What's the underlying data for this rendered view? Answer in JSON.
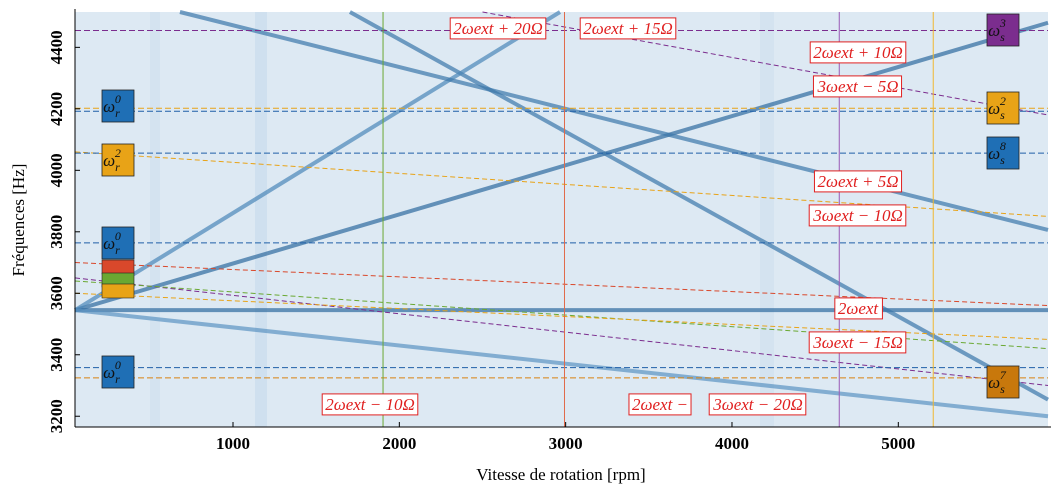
{
  "chart_data": {
    "type": "spectrogram",
    "xlabel": "Vitesse de rotation [rpm]",
    "ylabel": "Fréquences [Hz]",
    "xlim": [
      50,
      5900
    ],
    "ylim": [
      3165,
      4515
    ],
    "xticks": [
      1000,
      2000,
      3000,
      4000,
      5000
    ],
    "yticks": [
      3200,
      3400,
      3600,
      3800,
      4000,
      4200,
      4400
    ],
    "traces": [
      {
        "x": [
          50,
          5900
        ],
        "values": [
          3545,
          4480
        ],
        "color": "#2e6a9e"
      },
      {
        "x": [
          50,
          5900
        ],
        "values": [
          3545,
          3545
        ],
        "color": "#2e6a9e"
      },
      {
        "x": [
          1703,
          5900
        ],
        "values": [
          4515,
          3254
        ],
        "color": "#3a76aa"
      },
      {
        "x": [
          50,
          2966
        ],
        "values": [
          3545,
          4515
        ],
        "color": "#4a86b8"
      },
      {
        "x": [
          681,
          5900
        ],
        "values": [
          4515,
          3806
        ],
        "color": "#3a76aa"
      },
      {
        "x": [
          50,
          5900
        ],
        "values": [
          3545,
          3200
        ],
        "color": "#5b93c2"
      }
    ],
    "hlines": [
      {
        "value": 4455,
        "color": "#7b2d8e"
      },
      {
        "value": 4202,
        "color": "#e8a317"
      },
      {
        "value": 4192,
        "color": "#1f5fa8"
      },
      {
        "value": 4056,
        "color": "#1f5fa8"
      },
      {
        "value": 3764,
        "color": "#1f5fa8"
      },
      {
        "value": 3358,
        "color": "#1f5fa8"
      },
      {
        "value": 3325,
        "color": "#d9820f"
      }
    ],
    "vlines": [
      {
        "value": 1902,
        "color": "#6aa832"
      },
      {
        "value": 2993,
        "color": "#e06a4a"
      },
      {
        "value": 4645,
        "color": "#9a5bb5"
      },
      {
        "value": 5210,
        "color": "#f0b830"
      }
    ],
    "dashed_curves": [
      {
        "x": [
          50,
          5900
        ],
        "values": [
          4060,
          3850
        ],
        "color": "#e8a317"
      },
      {
        "x": [
          50,
          5900
        ],
        "values": [
          3700,
          3560
        ],
        "color": "#d9482b"
      },
      {
        "x": [
          50,
          5900
        ],
        "values": [
          3650,
          3300
        ],
        "color": "#7b2d8e"
      },
      {
        "x": [
          50,
          5900
        ],
        "values": [
          3640,
          3420
        ],
        "color": "#6aa832"
      },
      {
        "x": [
          50,
          5900
        ],
        "values": [
          3600,
          3450
        ],
        "color": "#e8a317"
      },
      {
        "x": [
          2500,
          5900
        ],
        "values": [
          4515,
          4180
        ],
        "color": "#7b2d8e"
      }
    ],
    "annotations": [
      "2ωext + 20Ω",
      "2ωext + 15Ω",
      "2ωext + 10Ω",
      "3ωext − 5Ω",
      "2ωext + 5Ω",
      "3ωext − 10Ω",
      "2ωext",
      "3ωext − 15Ω",
      "2ωext − 10Ω",
      "2ωext −",
      "3ωext − 20Ω"
    ],
    "modes": [
      {
        "base": "ω",
        "sub": "r",
        "sup": "0",
        "color": "#1f6fb5"
      },
      {
        "base": "ω",
        "sub": "r",
        "sup": "2",
        "color": "#e8a317"
      },
      {
        "base": "ω",
        "sub": "r",
        "sup": "0",
        "color": "#1f6fb5"
      },
      {
        "base": "ω",
        "sub": "r",
        "sup": "0",
        "color": "#1f6fb5"
      },
      {
        "base": "ω",
        "sub": "s",
        "sup": "3",
        "color": "#7b2d8e"
      },
      {
        "base": "ω",
        "sub": "s",
        "sup": "2",
        "color": "#e8a317"
      },
      {
        "base": "ω",
        "sub": "s",
        "sup": "8",
        "color": "#1f6fb5"
      },
      {
        "base": "ω",
        "sub": "s",
        "sup": "7",
        "color": "#c8780c"
      }
    ]
  }
}
